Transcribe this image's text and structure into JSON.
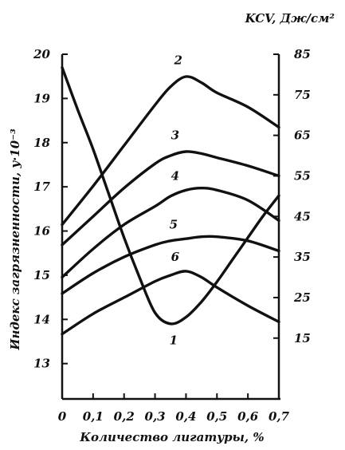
{
  "chart_data": {
    "type": "line",
    "xlabel": "Количество лигатуры, %",
    "ylabel": "Индекс загрязненности, y·10⁻³",
    "y2label": "KCV, Дж/см²",
    "xlim": [
      0,
      0.7
    ],
    "ylim": [
      12.2,
      20
    ],
    "y2lim": [
      0,
      85
    ],
    "x_ticks": [
      "0",
      "0,1",
      "0,2",
      "0,3",
      "0,4",
      "0,5",
      "0,6",
      "0,7"
    ],
    "y_ticks": [
      "13",
      "14",
      "15",
      "16",
      "17",
      "18",
      "19",
      "20"
    ],
    "y2_ticks": [
      "15",
      "25",
      "35",
      "45",
      "55",
      "65",
      "75",
      "85"
    ],
    "grid": false,
    "series": [
      {
        "name": "1",
        "axis": "left",
        "color": "#111111",
        "x": [
          0,
          0.05,
          0.1,
          0.15,
          0.2,
          0.25,
          0.3,
          0.35,
          0.4,
          0.45,
          0.5,
          0.55,
          0.6,
          0.65,
          0.7
        ],
        "y": [
          19.7,
          18.75,
          17.85,
          16.85,
          15.85,
          14.95,
          14.15,
          13.9,
          14.05,
          14.4,
          14.85,
          15.35,
          15.85,
          16.35,
          16.8
        ]
      },
      {
        "name": "2",
        "axis": "right",
        "color": "#111111",
        "x": [
          0,
          0.1,
          0.2,
          0.3,
          0.35,
          0.4,
          0.45,
          0.5,
          0.6,
          0.7
        ],
        "y": [
          43,
          52.5,
          62.5,
          72.5,
          77,
          79.5,
          78,
          75.5,
          72,
          67
        ]
      },
      {
        "name": "3",
        "axis": "right",
        "color": "#111111",
        "x": [
          0,
          0.1,
          0.2,
          0.3,
          0.35,
          0.4,
          0.45,
          0.5,
          0.6,
          0.7
        ],
        "y": [
          38,
          45,
          52,
          58,
          60,
          61,
          60.5,
          59.5,
          57.5,
          55
        ]
      },
      {
        "name": "4",
        "axis": "right",
        "color": "#111111",
        "x": [
          0,
          0.1,
          0.2,
          0.3,
          0.35,
          0.4,
          0.45,
          0.5,
          0.6,
          0.7
        ],
        "y": [
          30,
          37,
          43,
          47.5,
          50,
          51.5,
          52,
          51.5,
          49,
          44
        ]
      },
      {
        "name": "5",
        "axis": "right",
        "color": "#111111",
        "x": [
          0,
          0.1,
          0.2,
          0.3,
          0.35,
          0.4,
          0.45,
          0.5,
          0.6,
          0.7
        ],
        "y": [
          26,
          31,
          35,
          38,
          39,
          39.5,
          40,
          40,
          39,
          36.5
        ]
      },
      {
        "name": "6",
        "axis": "right",
        "color": "#111111",
        "x": [
          0,
          0.1,
          0.2,
          0.3,
          0.35,
          0.4,
          0.45,
          0.5,
          0.6,
          0.7
        ],
        "y": [
          16,
          21,
          25,
          29,
          30.5,
          31.5,
          30,
          27.5,
          23,
          19
        ]
      }
    ],
    "curve_label_positions": [
      {
        "text": "1",
        "x": 0.36,
        "axis": "right",
        "y": 13.5
      },
      {
        "text": "2",
        "x": 0.375,
        "axis": "right",
        "y": 82.5
      },
      {
        "text": "3",
        "x": 0.365,
        "axis": "right",
        "y": 64
      },
      {
        "text": "4",
        "x": 0.365,
        "axis": "right",
        "y": 54
      },
      {
        "text": "5",
        "x": 0.36,
        "axis": "right",
        "y": 42
      },
      {
        "text": "6",
        "x": 0.365,
        "axis": "right",
        "y": 34
      }
    ]
  }
}
